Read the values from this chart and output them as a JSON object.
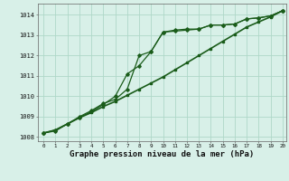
{
  "x": [
    0,
    1,
    2,
    3,
    4,
    5,
    6,
    7,
    8,
    9,
    10,
    11,
    12,
    13,
    14,
    15,
    16,
    17,
    18,
    19,
    20
  ],
  "line1": [
    1008.2,
    1008.35,
    1008.65,
    1008.95,
    1009.2,
    1009.5,
    1009.75,
    1010.05,
    1010.35,
    1010.65,
    1010.95,
    1011.3,
    1011.65,
    1012.0,
    1012.35,
    1012.7,
    1013.05,
    1013.4,
    1013.65,
    1013.9,
    1014.2
  ],
  "line2": [
    1008.2,
    1008.3,
    1008.65,
    1008.95,
    1009.25,
    1009.6,
    1010.0,
    1011.1,
    1011.5,
    1012.2,
    1013.15,
    1013.2,
    1013.25,
    1013.3,
    1013.5,
    1013.5,
    1013.55,
    1013.8,
    1013.85,
    1013.95,
    1014.2
  ],
  "line3": [
    1008.2,
    1008.35,
    1008.65,
    1009.0,
    1009.3,
    1009.65,
    1009.85,
    1010.35,
    1012.0,
    1012.2,
    1013.15,
    1013.25,
    1013.3,
    1013.3,
    1013.5,
    1013.5,
    1013.55,
    1013.8,
    1013.85,
    1013.95,
    1014.2
  ],
  "line_color": "#1a5c1a",
  "bg_color": "#d8f0e8",
  "grid_color": "#afd8c8",
  "xlabel": "Graphe pression niveau de la mer (hPa)",
  "xlabel_fontsize": 6.5,
  "ylabel_ticks": [
    1008,
    1009,
    1010,
    1011,
    1012,
    1013,
    1014
  ],
  "ylabel_min": 1007.8,
  "ylabel_max": 1014.55,
  "xmin": -0.5,
  "xmax": 20.3
}
